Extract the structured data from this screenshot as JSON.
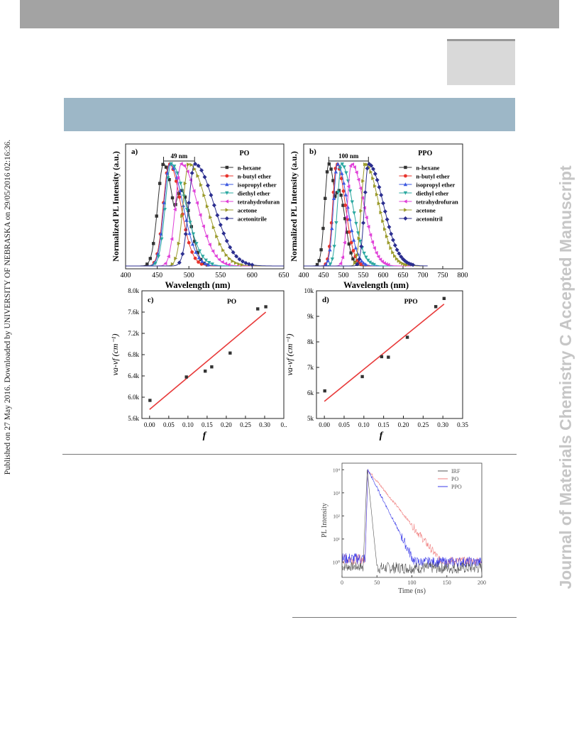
{
  "page": {
    "side_left_text": "Published on 27 May 2016. Downloaded by UNIVERSITY OF NEBRASKA on 29/05/2016 02:16:36.",
    "side_right_text": "Journal of Materials Chemistry C Accepted Manuscript"
  },
  "colors": {
    "topbar": "#a3a3a3",
    "band": "#9db7c7",
    "watermark": "#c6c6c6"
  },
  "legend_solvents": {
    "a": [
      "n-hexane",
      "n-butyl ether",
      "isopropyl ether",
      "diethyl ether",
      "tetrahydrofuran",
      "acetone",
      "acetonitrile"
    ],
    "b": [
      "n-hexane",
      "n-butyl ether",
      "isopropyl ether",
      "diethyl ether",
      "tetrahydrofuran",
      "acetone",
      "acetonitril"
    ],
    "colors": [
      "#333333",
      "#e8352e",
      "#3b58e0",
      "#2aa8a0",
      "#e040d8",
      "#9a9a2a",
      "#2b2e8f"
    ]
  },
  "chart_data": [
    {
      "type": "line",
      "panel": "a)",
      "label": "PO",
      "annotation": "49 nm",
      "xlabel": "Wavelength (nm)",
      "ylabel": "Normalized PL Intensity (a.u.)",
      "xlim": [
        400,
        650
      ],
      "xticks": [
        400,
        450,
        500,
        550,
        600,
        650
      ],
      "series": [
        {
          "name": "n-hexane",
          "peak": 460,
          "shoulder": 488
        },
        {
          "name": "n-butyl ether",
          "peak": 469
        },
        {
          "name": "isopropyl ether",
          "peak": 470
        },
        {
          "name": "diethyl ether",
          "peak": 472
        },
        {
          "name": "tetrahydrofuran",
          "peak": 488
        },
        {
          "name": "acetone",
          "peak": 500
        },
        {
          "name": "acetonitrile",
          "peak": 509
        }
      ]
    },
    {
      "type": "line",
      "panel": "b)",
      "label": "PPO",
      "annotation": "100 nm",
      "xlabel": "Wavelength (nm)",
      "ylabel": "Normalized PL Intensity (a.u.)",
      "xlim": [
        400,
        800
      ],
      "xticks": [
        400,
        450,
        500,
        550,
        600,
        650,
        700,
        750,
        800
      ],
      "series": [
        {
          "name": "n-hexane",
          "peak": 463,
          "shoulder": 488
        },
        {
          "name": "n-butyl ether",
          "peak": 483
        },
        {
          "name": "isopropyl ether",
          "peak": 485
        },
        {
          "name": "diethyl ether",
          "peak": 495
        },
        {
          "name": "tetrahydrofuran",
          "peak": 520
        },
        {
          "name": "acetone",
          "peak": 555
        },
        {
          "name": "acetonitril",
          "peak": 563
        }
      ]
    },
    {
      "type": "scatter",
      "panel": "c)",
      "label": "PO",
      "xlabel": "f",
      "ylabel": "νa-νf (cm⁻¹)",
      "xlim": [
        -0.02,
        0.35
      ],
      "ylim": [
        5600,
        8000
      ],
      "xticks": [
        "0.00",
        "0.05",
        "0.10",
        "0.15",
        "0.20",
        "0.25",
        "0.30",
        "0.."
      ],
      "yticks": [
        "5.6k",
        "6.0k",
        "6.4k",
        "6.8k",
        "7.2k",
        "7.6k",
        "8.0k"
      ],
      "points": [
        [
          0.001,
          5940
        ],
        [
          0.096,
          6380
        ],
        [
          0.145,
          6490
        ],
        [
          0.162,
          6570
        ],
        [
          0.21,
          6830
        ],
        [
          0.282,
          7660
        ],
        [
          0.303,
          7700
        ]
      ],
      "fit": [
        [
          0.0,
          5770
        ],
        [
          0.303,
          7600
        ]
      ]
    },
    {
      "type": "scatter",
      "panel": "d)",
      "label": "PPO",
      "xlabel": "f",
      "ylabel": "νa-νf (cm⁻¹)",
      "xlim": [
        -0.02,
        0.35
      ],
      "ylim": [
        5000,
        10000
      ],
      "xticks": [
        "0.00",
        "0.05",
        "0.10",
        "0.15",
        "0.20",
        "0.25",
        "0.30",
        "0.35"
      ],
      "yticks": [
        "5k",
        "6k",
        "7k",
        "8k",
        "9k",
        "10k"
      ],
      "points": [
        [
          0.001,
          6080
        ],
        [
          0.096,
          6640
        ],
        [
          0.145,
          7420
        ],
        [
          0.162,
          7400
        ],
        [
          0.21,
          8180
        ],
        [
          0.282,
          9380
        ],
        [
          0.303,
          9700
        ]
      ],
      "fit": [
        [
          0.0,
          5670
        ],
        [
          0.303,
          9480
        ]
      ]
    },
    {
      "type": "line",
      "panel": "",
      "xlabel": "Time (ns)",
      "ylabel": "PL Intensity",
      "xlim": [
        0,
        200
      ],
      "xticks": [
        0,
        50,
        100,
        150,
        200
      ],
      "yscale": "log",
      "yticks": [
        "10⁰",
        "10¹",
        "10²",
        "10³",
        "10⁴"
      ],
      "series": [
        {
          "name": "IRF",
          "color": "#555555"
        },
        {
          "name": "PO",
          "color": "#f08080"
        },
        {
          "name": "PPO",
          "color": "#3a3ae8"
        }
      ]
    }
  ]
}
